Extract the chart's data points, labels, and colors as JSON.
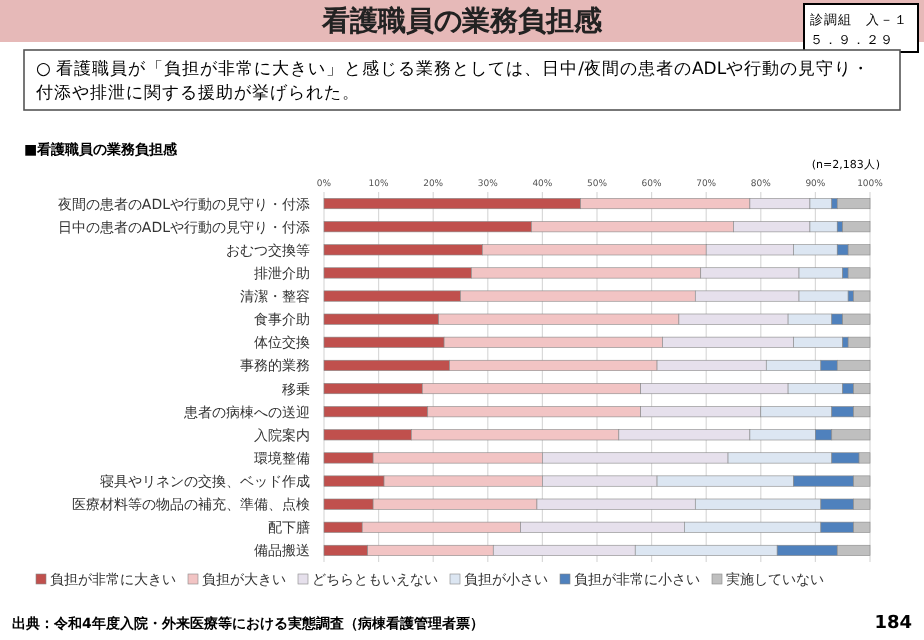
{
  "chart_data": {
    "type": "bar",
    "orientation": "horizontal",
    "stacked": true,
    "title": "看護職員の業務負担感",
    "subtitle": "○ 看護職員が「負担が非常に大きい」と感じる業務としては、日中/夜間の患者のADLや行動の見守り・付添や排泄に関する援助が挙げられた。",
    "annotations": [
      "■看護職員の業務負担感",
      "(n=2,183人)",
      "出典：令和4年度入院・外来医療等における実態調査（病棟看護管理者票）",
      "診調組　入－１",
      "５．９．２９",
      "184"
    ],
    "categories": [
      "夜間の患者のADLや行動の見守り・付添",
      "日中の患者のADLや行動の見守り・付添",
      "おむつ交換等",
      "排泄介助",
      "清潔・整容",
      "食事介助",
      "体位交換",
      "事務的業務",
      "移乗",
      "患者の病棟への送迎",
      "入院案内",
      "環境整備",
      "寝具やリネンの交換、ベッド作成",
      "医療材料等の物品の補充、準備、点検",
      "配下膳",
      "備品搬送"
    ],
    "series": [
      {
        "name": "負担が非常に大きい",
        "color": "#c0504d",
        "values": [
          47,
          38,
          29,
          27,
          25,
          21,
          22,
          23,
          18,
          19,
          16,
          9,
          11,
          9,
          7,
          8
        ]
      },
      {
        "name": "負担が大きい",
        "color": "#f2c4c4",
        "values": [
          31,
          37,
          41,
          42,
          43,
          44,
          40,
          38,
          40,
          39,
          38,
          31,
          29,
          30,
          29,
          23
        ]
      },
      {
        "name": "どちらともいえない",
        "color": "#e6e0ec",
        "values": [
          11,
          14,
          16,
          18,
          19,
          20,
          24,
          20,
          27,
          22,
          24,
          34,
          21,
          29,
          30,
          26
        ]
      },
      {
        "name": "負担が小さい",
        "color": "#dce6f2",
        "values": [
          4,
          5,
          8,
          8,
          9,
          8,
          9,
          10,
          10,
          13,
          12,
          19,
          25,
          23,
          25,
          26
        ]
      },
      {
        "name": "負担が非常に小さい",
        "color": "#4f81bd",
        "values": [
          1,
          1,
          2,
          1,
          1,
          2,
          1,
          3,
          2,
          4,
          3,
          5,
          11,
          6,
          6,
          11
        ]
      },
      {
        "name": "実施していない",
        "color": "#bfbfbf",
        "values": [
          6,
          5,
          4,
          4,
          3,
          5,
          4,
          6,
          3,
          3,
          7,
          2,
          3,
          3,
          3,
          6
        ]
      }
    ],
    "xlim": [
      0,
      100
    ],
    "xticks": [
      {
        "value": 0,
        "label": "0%"
      },
      {
        "value": 10,
        "label": "10%"
      },
      {
        "value": 20,
        "label": "20%"
      },
      {
        "value": 30,
        "label": "30%"
      },
      {
        "value": 40,
        "label": "40%"
      },
      {
        "value": 50,
        "label": "50%"
      },
      {
        "value": 60,
        "label": "60%"
      },
      {
        "value": 70,
        "label": "70%"
      },
      {
        "value": 80,
        "label": "80%"
      },
      {
        "value": 90,
        "label": "90%"
      },
      {
        "value": 100,
        "label": "100%"
      }
    ],
    "grid": "x",
    "legend": "bottom"
  }
}
